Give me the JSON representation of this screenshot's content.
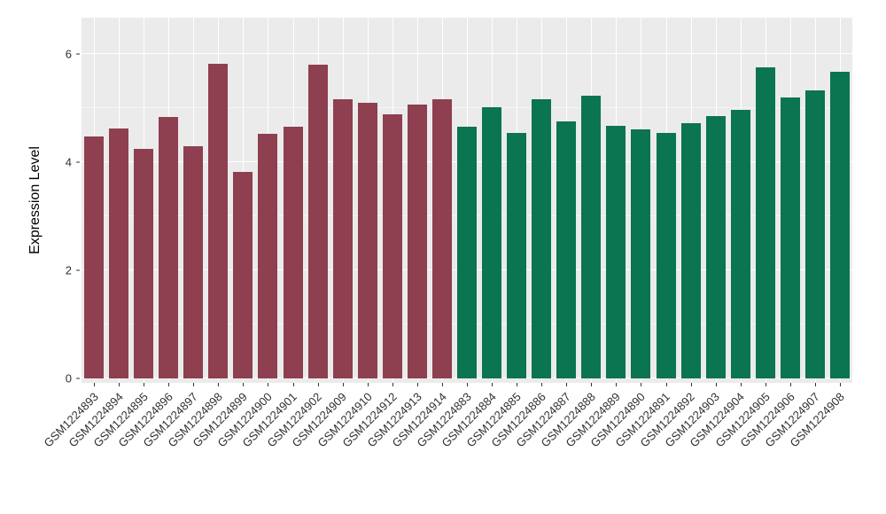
{
  "figure": {
    "background": "#ffffff",
    "panel_background": "#ebebeb",
    "grid_color": "#ffffff",
    "axis_text_color": "#303030"
  },
  "chart_data": {
    "type": "bar",
    "title": "",
    "xlabel": "",
    "ylabel": "Expression Level",
    "ylim": [
      0,
      6.7
    ],
    "y_ticks": [
      0,
      2,
      4,
      6
    ],
    "y_minor": [
      1,
      3,
      5
    ],
    "grid": "white major+minor horizontal lines and vertical category lines on gray panel",
    "legend": "none",
    "bar_group_colors": [
      "#8e3f50",
      "#0b7450"
    ],
    "bar_group_names": [
      "maroon-group",
      "green-group"
    ],
    "categories": [
      "GSM1224893",
      "GSM1224894",
      "GSM1224895",
      "GSM1224896",
      "GSM1224897",
      "GSM1224898",
      "GSM1224899",
      "GSM1224900",
      "GSM1224901",
      "GSM1224902",
      "GSM1224909",
      "GSM1224910",
      "GSM1224912",
      "GSM1224913",
      "GSM1224914",
      "GSM1224883",
      "GSM1224884",
      "GSM1224885",
      "GSM1224886",
      "GSM1224887",
      "GSM1224888",
      "GSM1224889",
      "GSM1224890",
      "GSM1224891",
      "GSM1224892",
      "GSM1224903",
      "GSM1224904",
      "GSM1224905",
      "GSM1224906",
      "GSM1224907",
      "GSM1224908"
    ],
    "values": [
      4.47,
      4.62,
      4.25,
      4.84,
      4.3,
      5.82,
      3.82,
      4.53,
      4.65,
      5.8,
      5.16,
      5.1,
      4.88,
      5.06,
      5.16,
      4.65,
      5.02,
      4.54,
      5.16,
      4.76,
      5.23,
      4.67,
      4.61,
      4.54,
      4.72,
      4.86,
      4.97,
      5.75,
      5.2,
      5.32,
      5.67
    ],
    "groups": [
      0,
      0,
      0,
      0,
      0,
      0,
      0,
      0,
      0,
      0,
      0,
      0,
      0,
      0,
      0,
      1,
      1,
      1,
      1,
      1,
      1,
      1,
      1,
      1,
      1,
      1,
      1,
      1,
      1,
      1,
      1
    ]
  }
}
